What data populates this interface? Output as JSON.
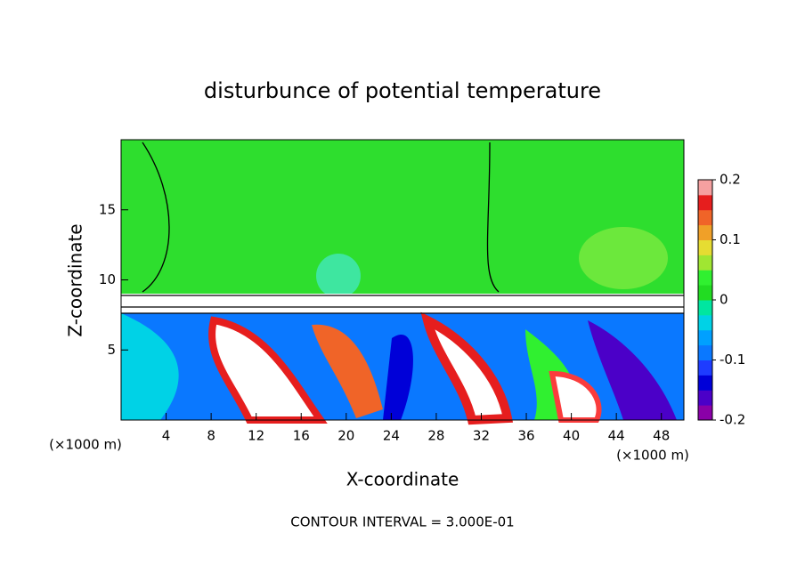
{
  "chart_data": {
    "type": "contour",
    "title": "disturbunce of potential temperature",
    "x_label": "X-coordinate",
    "y_label": "Z-coordinate",
    "x_unit": "(×1000 m)",
    "footnote": "CONTOUR INTERVAL = 3.000E-01",
    "xlim": [
      0,
      50
    ],
    "xticks": [
      4,
      8,
      12,
      16,
      20,
      24,
      28,
      32,
      36,
      40,
      44,
      48
    ],
    "ylim": [
      0,
      20
    ],
    "yticks": [
      5,
      10,
      15
    ],
    "colorbar": {
      "lim": [
        -0.2,
        0.2
      ],
      "ticks": [
        -0.2,
        -0.1,
        0,
        0.1,
        0.2
      ],
      "colors": [
        "#8a00a8",
        "#4b00c8",
        "#0000d8",
        "#1e3cff",
        "#0a78ff",
        "#00a0ff",
        "#00d2e6",
        "#00e6a0",
        "#22dc22",
        "#30f030",
        "#a0e632",
        "#e6dc32",
        "#f0a028",
        "#f06428",
        "#e61e1e",
        "#f5a0a0"
      ]
    }
  }
}
